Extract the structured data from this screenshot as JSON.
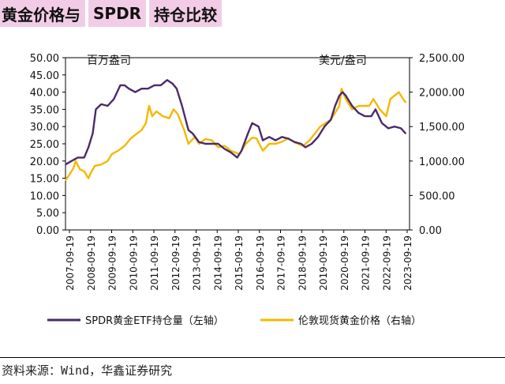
{
  "title": {
    "part1": "黄金价格与",
    "part2": "SPDR",
    "part3": "持仓比较"
  },
  "source": "资料来源：Wind，华鑫证券研究",
  "chart_data": {
    "type": "line",
    "left_axis": {
      "unit_label": "百万盎司",
      "ticks": [
        "0.00",
        "5.00",
        "10.00",
        "15.00",
        "20.00",
        "25.00",
        "30.00",
        "35.00",
        "40.00",
        "45.00",
        "50.00"
      ],
      "ylim": [
        0,
        50
      ]
    },
    "right_axis": {
      "unit_label": "美元/盎司",
      "ticks": [
        "0.00",
        "500.00",
        "1,000.00",
        "1,500.00",
        "2,000.00",
        "2,500.00"
      ],
      "ylim": [
        0,
        2500
      ]
    },
    "x_ticks": [
      "2007-09-19",
      "2008-09-19",
      "2009-09-19",
      "2010-09-19",
      "2011-09-19",
      "2012-09-19",
      "2013-09-19",
      "2014-09-19",
      "2015-09-19",
      "2016-09-19",
      "2017-09-19",
      "2018-09-19",
      "2019-09-19",
      "2020-09-19",
      "2021-09-19",
      "2022-09-19",
      "2023-09-19"
    ],
    "x_range": [
      2007.72,
      2023.9
    ],
    "legend": [
      {
        "name": "SPDR黄金ETF持仓量（左轴）",
        "color": "#4b2a6b"
      },
      {
        "name": "伦敦现货黄金价格（右轴）",
        "color": "#f5b800"
      }
    ],
    "series": [
      {
        "name": "SPDR黄金ETF持仓量（左轴）",
        "axis": "left",
        "color": "#4b2a6b",
        "x": [
          2007.72,
          2008.0,
          2008.3,
          2008.6,
          2008.8,
          2009.0,
          2009.15,
          2009.4,
          2009.7,
          2010.0,
          2010.3,
          2010.5,
          2010.7,
          2011.0,
          2011.3,
          2011.6,
          2011.9,
          2012.2,
          2012.5,
          2012.75,
          2012.95,
          2013.2,
          2013.5,
          2013.7,
          2014.0,
          2014.3,
          2014.6,
          2014.9,
          2015.2,
          2015.5,
          2015.8,
          2016.0,
          2016.3,
          2016.5,
          2016.8,
          2017.0,
          2017.3,
          2017.6,
          2017.9,
          2018.2,
          2018.5,
          2018.8,
          2019.0,
          2019.3,
          2019.6,
          2019.9,
          2020.2,
          2020.4,
          2020.6,
          2020.75,
          2020.9,
          2021.2,
          2021.5,
          2021.8,
          2022.1,
          2022.3,
          2022.6,
          2022.9,
          2023.2,
          2023.5,
          2023.72
        ],
        "values": [
          19,
          20,
          21,
          21,
          24,
          28,
          35,
          36.5,
          36,
          38,
          42,
          42,
          41,
          40,
          41,
          41,
          42,
          42,
          43.5,
          42.5,
          41,
          36,
          29,
          28,
          25.5,
          25,
          25,
          25,
          23.5,
          22.5,
          21,
          23,
          28,
          31,
          30,
          26,
          27,
          26,
          27,
          26.5,
          25.5,
          25,
          24,
          25,
          27,
          30,
          32,
          36,
          39,
          40,
          39,
          36,
          34,
          33,
          33,
          35,
          31,
          29.5,
          30,
          29.5,
          28
        ]
      },
      {
        "name": "伦敦现货黄金价格（右轴）",
        "axis": "right",
        "color": "#f5b800",
        "x": [
          2007.72,
          2007.9,
          2008.1,
          2008.2,
          2008.4,
          2008.6,
          2008.8,
          2008.9,
          2009.1,
          2009.4,
          2009.7,
          2009.9,
          2010.2,
          2010.5,
          2010.8,
          2011.0,
          2011.3,
          2011.5,
          2011.65,
          2011.8,
          2012.0,
          2012.3,
          2012.6,
          2012.8,
          2013.0,
          2013.3,
          2013.5,
          2013.8,
          2014.0,
          2014.3,
          2014.6,
          2014.9,
          2015.2,
          2015.5,
          2015.9,
          2016.2,
          2016.5,
          2016.7,
          2017.0,
          2017.3,
          2017.6,
          2017.9,
          2018.2,
          2018.5,
          2018.9,
          2019.2,
          2019.5,
          2019.7,
          2020.0,
          2020.2,
          2020.4,
          2020.6,
          2020.7,
          2020.9,
          2021.2,
          2021.5,
          2021.8,
          2022.0,
          2022.2,
          2022.5,
          2022.8,
          2023.0,
          2023.2,
          2023.4,
          2023.6,
          2023.72
        ],
        "values": [
          720,
          800,
          900,
          1000,
          880,
          850,
          750,
          820,
          930,
          950,
          1000,
          1100,
          1150,
          1220,
          1330,
          1380,
          1450,
          1550,
          1800,
          1650,
          1720,
          1650,
          1620,
          1750,
          1680,
          1450,
          1250,
          1350,
          1250,
          1320,
          1300,
          1200,
          1220,
          1150,
          1100,
          1250,
          1340,
          1330,
          1150,
          1250,
          1250,
          1280,
          1330,
          1270,
          1220,
          1300,
          1420,
          1500,
          1560,
          1600,
          1700,
          1800,
          2050,
          1900,
          1750,
          1800,
          1800,
          1800,
          1900,
          1750,
          1650,
          1900,
          1950,
          2000,
          1900,
          1850
        ]
      }
    ]
  }
}
